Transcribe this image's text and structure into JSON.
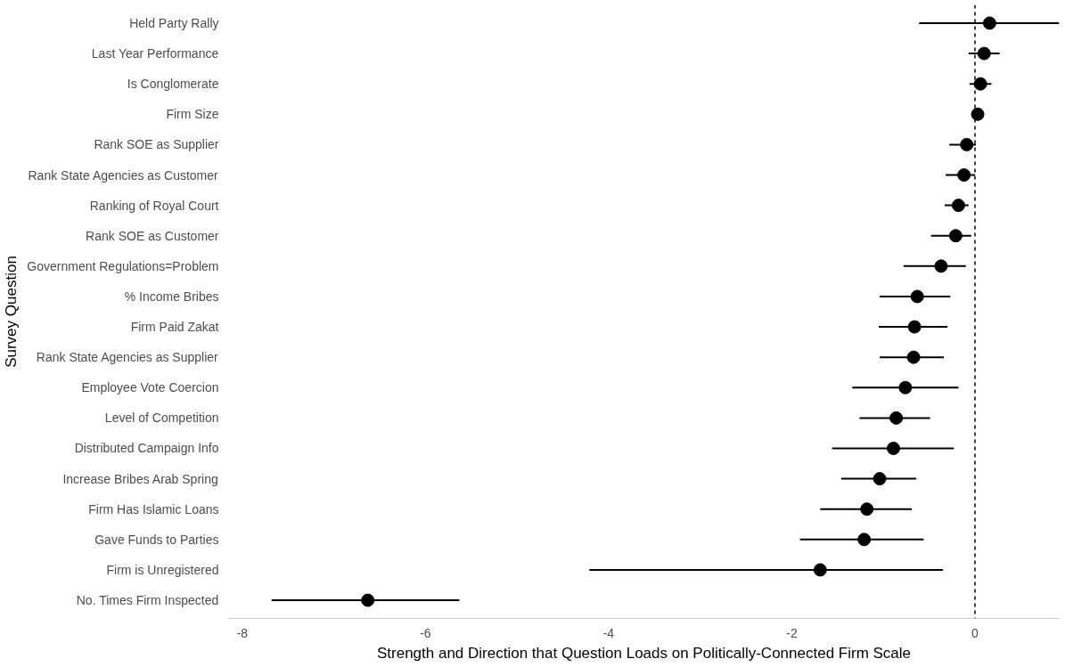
{
  "chart_data": {
    "type": "scatter",
    "orientation": "horizontal",
    "xlabel": "Strength and Direction that Question Loads on Politically-Connected Firm Scale",
    "ylabel": "Survey Question",
    "categories": [
      "Held Party Rally",
      "Last Year Performance",
      "Is Conglomerate",
      "Firm Size",
      "Rank SOE as Supplier",
      "Rank State Agencies as Customer",
      "Ranking of Royal Court",
      "Rank SOE as Customer",
      "Government Regulations=Problem",
      "% Income Bribes",
      "Firm Paid Zakat",
      "Rank State Agencies as Supplier",
      "Employee Vote Coercion",
      "Level of Competition",
      "Distributed Campaign Info",
      "Increase Bribes Arab Spring",
      "Firm Has Islamic Loans",
      "Gave Funds to Parties",
      "Firm is Unregistered",
      "No. Times Firm Inspected"
    ],
    "series": [
      {
        "color": "#000000",
        "values": [
          0.16,
          0.1,
          0.06,
          0.03,
          -0.09,
          -0.12,
          -0.18,
          -0.21,
          -0.37,
          -0.63,
          -0.66,
          -0.67,
          -0.76,
          -0.86,
          -0.89,
          -1.04,
          -1.18,
          -1.21,
          -1.69,
          -6.63
        ],
        "errors": [
          [
            -0.61,
            0.92
          ],
          0.17,
          0.12,
          0.03,
          [
            -0.28,
            0.01
          ],
          [
            -0.32,
            0.0
          ],
          [
            -0.33,
            -0.07
          ],
          [
            -0.48,
            -0.04
          ],
          [
            -0.78,
            -0.1
          ],
          [
            -1.04,
            -0.27
          ],
          [
            -1.05,
            -0.3
          ],
          [
            -1.04,
            -0.34
          ],
          [
            -1.34,
            -0.18
          ],
          [
            -1.26,
            -0.49
          ],
          [
            -1.56,
            -0.23
          ],
          [
            -1.46,
            -0.64
          ],
          [
            -1.69,
            -0.69
          ],
          [
            -1.91,
            -0.56
          ],
          [
            -4.21,
            -0.35
          ],
          [
            -7.68,
            -5.63
          ]
        ]
      }
    ],
    "xlim": [
      -8.15,
      0.92
    ],
    "xticks": [
      -8,
      -6,
      -4,
      -2,
      0
    ],
    "marker": "circle",
    "grid": false,
    "ref_lines": [
      {
        "axis": "x",
        "value": 0,
        "line_style": "dashed",
        "color": "#000000"
      }
    ]
  }
}
